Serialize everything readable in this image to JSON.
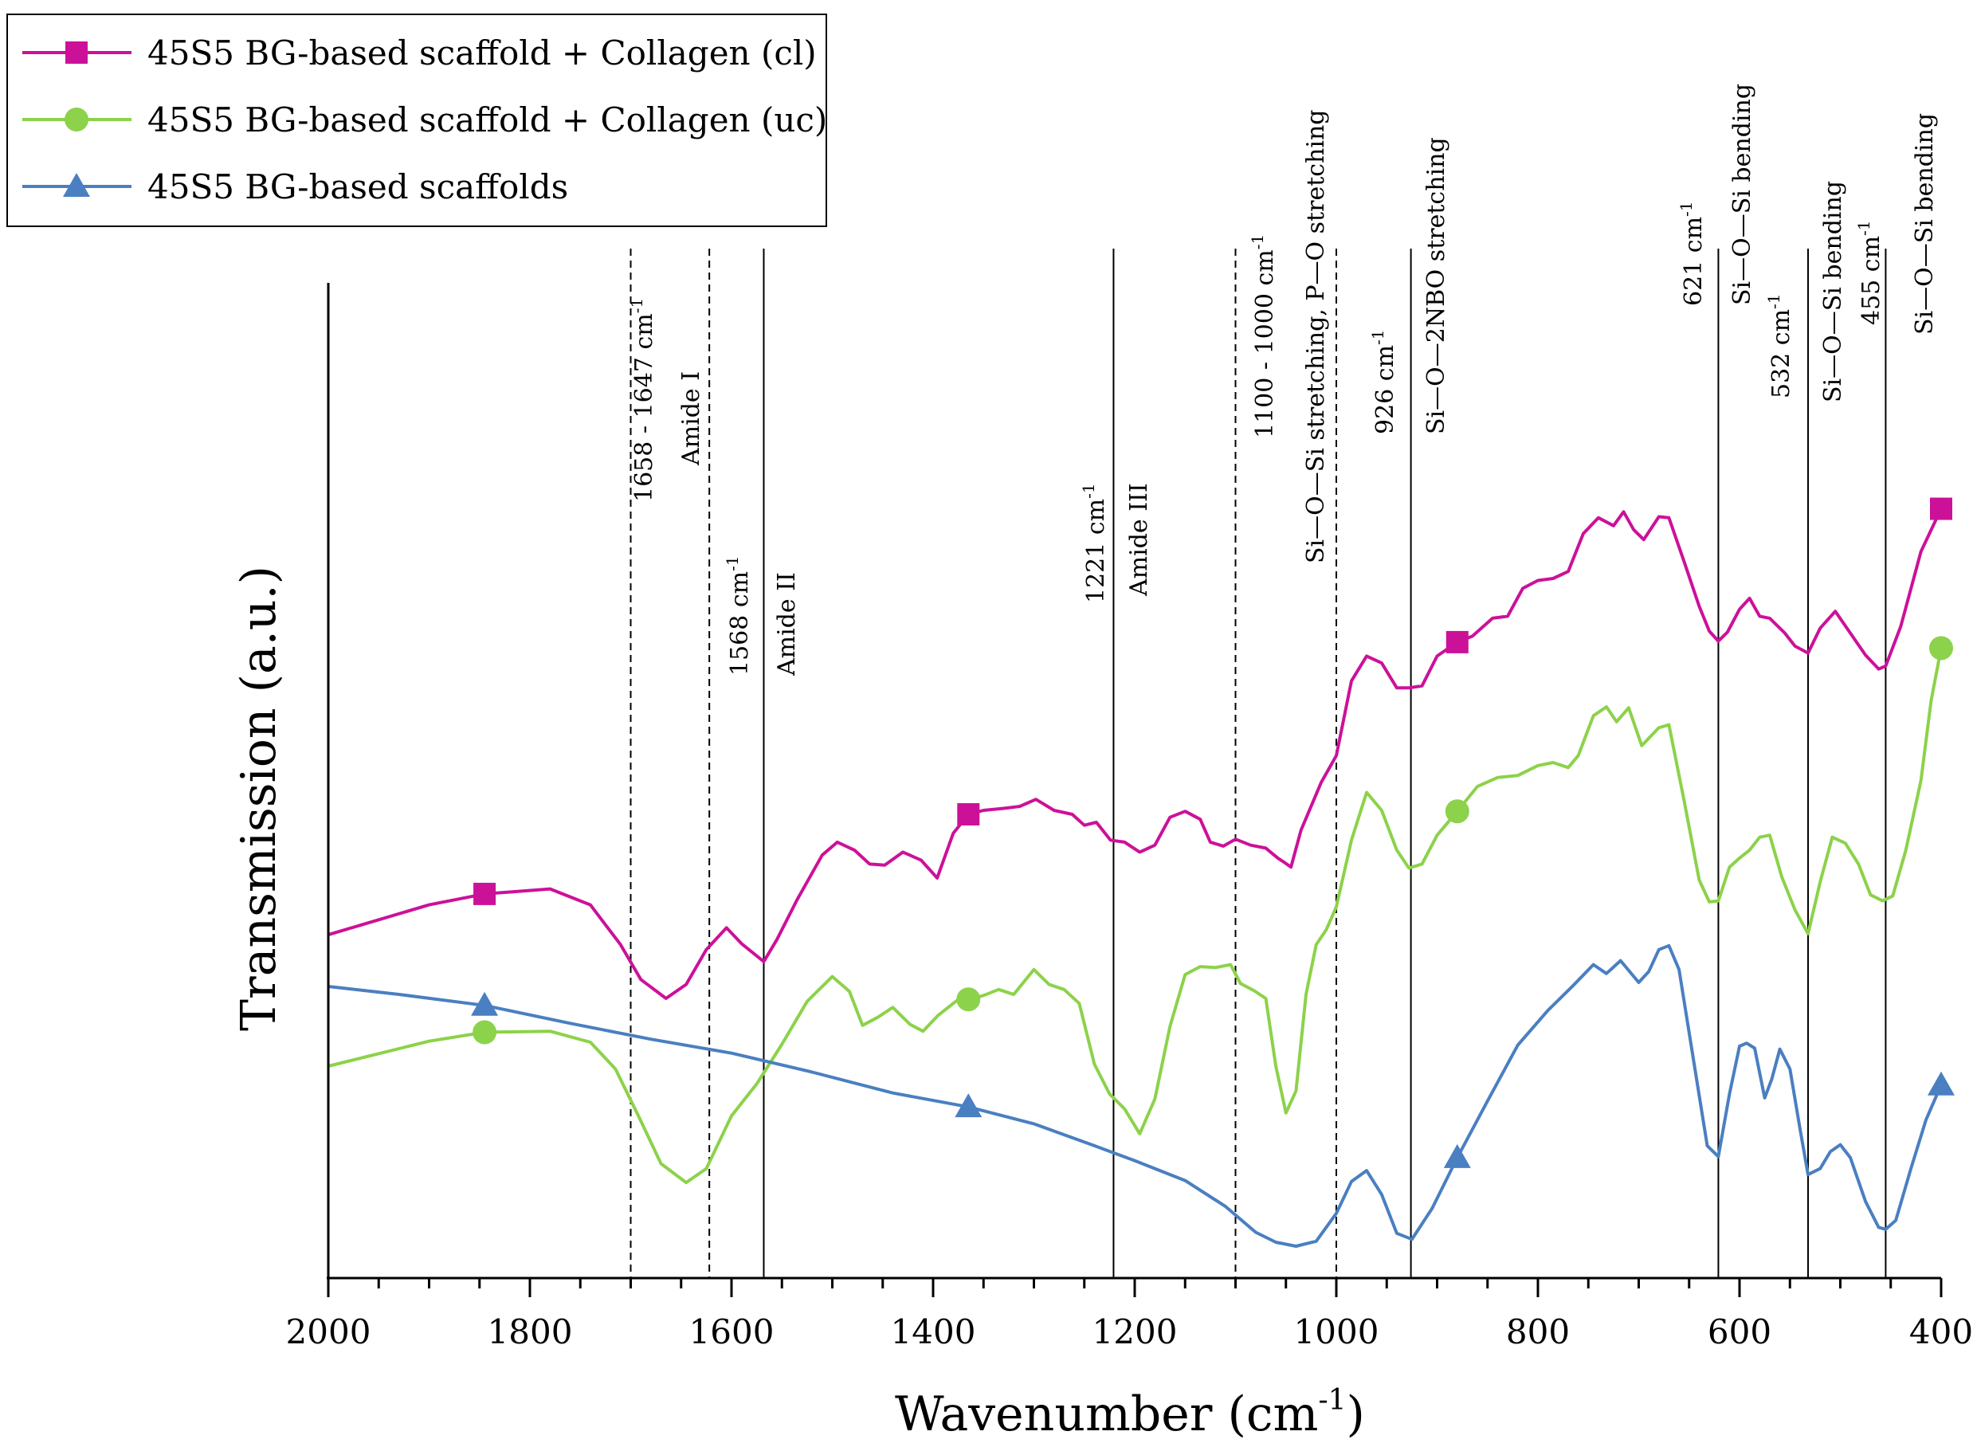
{
  "chart_data": {
    "type": "line",
    "xlabel": "Wavenumber (cm",
    "xlabel_sup": "-1",
    "xlabel_end": ")",
    "ylabel": "Transmission (a.u.)",
    "xlim": [
      2000,
      400
    ],
    "ylim": [
      0,
      100
    ],
    "x_reversed": true,
    "x_ticks": [
      2000,
      1800,
      1600,
      1400,
      1200,
      1000,
      800,
      600,
      400
    ],
    "x_tick_labels": [
      "2000",
      "1800",
      "1600",
      "1400",
      "1200",
      "1000",
      "800",
      "600",
      "400"
    ],
    "legend_position": "top-left",
    "series": [
      {
        "name": "45S5 BG-based scaffold + Collagen (cl)",
        "color": "#cc1199",
        "marker": "square",
        "marker_x": [
          1845,
          1365,
          880,
          400
        ],
        "points": [
          [
            2000,
            34.5
          ],
          [
            1900,
            37.5
          ],
          [
            1845,
            38.6
          ],
          [
            1780,
            39.1
          ],
          [
            1740,
            37.5
          ],
          [
            1710,
            33.5
          ],
          [
            1690,
            30
          ],
          [
            1665,
            28.1
          ],
          [
            1645,
            29.5
          ],
          [
            1625,
            33
          ],
          [
            1605,
            35.2
          ],
          [
            1590,
            33.6
          ],
          [
            1568,
            31.8
          ],
          [
            1555,
            34
          ],
          [
            1535,
            38
          ],
          [
            1510,
            42.5
          ],
          [
            1495,
            43.8
          ],
          [
            1478,
            43
          ],
          [
            1463,
            41.6
          ],
          [
            1448,
            41.5
          ],
          [
            1430,
            42.8
          ],
          [
            1412,
            42
          ],
          [
            1396,
            40.2
          ],
          [
            1380,
            44.7
          ],
          [
            1365,
            46.6
          ],
          [
            1350,
            47
          ],
          [
            1330,
            47.2
          ],
          [
            1314,
            47.4
          ],
          [
            1298,
            48.1
          ],
          [
            1280,
            47
          ],
          [
            1262,
            46.6
          ],
          [
            1250,
            45.5
          ],
          [
            1238,
            45.8
          ],
          [
            1224,
            44
          ],
          [
            1210,
            43.8
          ],
          [
            1195,
            42.8
          ],
          [
            1180,
            43.5
          ],
          [
            1165,
            46.3
          ],
          [
            1150,
            46.9
          ],
          [
            1135,
            46.1
          ],
          [
            1125,
            43.8
          ],
          [
            1112,
            43.4
          ],
          [
            1100,
            44.1
          ],
          [
            1085,
            43.5
          ],
          [
            1070,
            43.2
          ],
          [
            1058,
            42.2
          ],
          [
            1052,
            41.8
          ],
          [
            1045,
            41.3
          ],
          [
            1035,
            45
          ],
          [
            1015,
            49.8
          ],
          [
            1000,
            52.5
          ],
          [
            985,
            60
          ],
          [
            970,
            62.5
          ],
          [
            955,
            61.8
          ],
          [
            940,
            59.3
          ],
          [
            928,
            59.3
          ],
          [
            915,
            59.5
          ],
          [
            900,
            62.5
          ],
          [
            880,
            63.9
          ],
          [
            865,
            64.5
          ],
          [
            845,
            66.3
          ],
          [
            830,
            66.5
          ],
          [
            815,
            69.3
          ],
          [
            800,
            70.1
          ],
          [
            785,
            70.3
          ],
          [
            770,
            71
          ],
          [
            755,
            74.8
          ],
          [
            740,
            76.4
          ],
          [
            725,
            75.6
          ],
          [
            715,
            77
          ],
          [
            705,
            75.2
          ],
          [
            695,
            74.2
          ],
          [
            680,
            76.5
          ],
          [
            670,
            76.4
          ],
          [
            655,
            72
          ],
          [
            640,
            67.5
          ],
          [
            630,
            65
          ],
          [
            621,
            64
          ],
          [
            612,
            64.9
          ],
          [
            600,
            67.2
          ],
          [
            590,
            68.3
          ],
          [
            580,
            66.5
          ],
          [
            570,
            66.3
          ],
          [
            555,
            64.8
          ],
          [
            545,
            63.5
          ],
          [
            532,
            62.8
          ],
          [
            520,
            65.3
          ],
          [
            505,
            67
          ],
          [
            490,
            64.8
          ],
          [
            475,
            62.6
          ],
          [
            462,
            61.2
          ],
          [
            455,
            61.5
          ],
          [
            440,
            65.5
          ],
          [
            420,
            73
          ],
          [
            400,
            77.3
          ]
        ]
      },
      {
        "name": "45S5 BG-based scaffold + Collagen (uc)",
        "color": "#8cd24a",
        "marker": "circle",
        "marker_x": [
          1845,
          1365,
          880,
          400
        ],
        "points": [
          [
            2000,
            21.3
          ],
          [
            1900,
            23.8
          ],
          [
            1845,
            24.7
          ],
          [
            1780,
            24.8
          ],
          [
            1740,
            23.7
          ],
          [
            1715,
            21
          ],
          [
            1690,
            15.8
          ],
          [
            1670,
            11.5
          ],
          [
            1645,
            9.6
          ],
          [
            1625,
            11
          ],
          [
            1600,
            16.3
          ],
          [
            1575,
            19.5
          ],
          [
            1550,
            23.5
          ],
          [
            1525,
            27.8
          ],
          [
            1500,
            30.3
          ],
          [
            1483,
            28.8
          ],
          [
            1470,
            25.4
          ],
          [
            1455,
            26.2
          ],
          [
            1440,
            27.2
          ],
          [
            1423,
            25.5
          ],
          [
            1410,
            24.8
          ],
          [
            1395,
            26.4
          ],
          [
            1375,
            28
          ],
          [
            1365,
            28
          ],
          [
            1350,
            28.4
          ],
          [
            1335,
            29
          ],
          [
            1320,
            28.5
          ],
          [
            1300,
            31
          ],
          [
            1285,
            29.5
          ],
          [
            1270,
            29
          ],
          [
            1255,
            27.6
          ],
          [
            1240,
            21.5
          ],
          [
            1225,
            18.5
          ],
          [
            1210,
            17
          ],
          [
            1195,
            14.5
          ],
          [
            1180,
            18
          ],
          [
            1165,
            25.3
          ],
          [
            1150,
            30.5
          ],
          [
            1135,
            31.3
          ],
          [
            1120,
            31.2
          ],
          [
            1105,
            31.5
          ],
          [
            1095,
            29.6
          ],
          [
            1082,
            28.9
          ],
          [
            1070,
            28.1
          ],
          [
            1060,
            21.3
          ],
          [
            1050,
            16.6
          ],
          [
            1040,
            18.8
          ],
          [
            1030,
            28.5
          ],
          [
            1020,
            33.5
          ],
          [
            1010,
            35
          ],
          [
            1000,
            37.3
          ],
          [
            985,
            44
          ],
          [
            970,
            48.8
          ],
          [
            955,
            47
          ],
          [
            940,
            43
          ],
          [
            928,
            41.2
          ],
          [
            915,
            41.6
          ],
          [
            900,
            44.5
          ],
          [
            880,
            46.9
          ],
          [
            860,
            49.4
          ],
          [
            840,
            50.3
          ],
          [
            820,
            50.5
          ],
          [
            800,
            51.5
          ],
          [
            785,
            51.8
          ],
          [
            770,
            51.3
          ],
          [
            760,
            52.5
          ],
          [
            745,
            56.5
          ],
          [
            732,
            57.4
          ],
          [
            722,
            55.9
          ],
          [
            710,
            57.3
          ],
          [
            697,
            53.5
          ],
          [
            680,
            55.3
          ],
          [
            670,
            55.6
          ],
          [
            655,
            48
          ],
          [
            640,
            40
          ],
          [
            630,
            37.8
          ],
          [
            621,
            37.9
          ],
          [
            610,
            41.3
          ],
          [
            600,
            42.2
          ],
          [
            590,
            43
          ],
          [
            580,
            44.3
          ],
          [
            570,
            44.5
          ],
          [
            558,
            40.3
          ],
          [
            545,
            37
          ],
          [
            532,
            34.6
          ],
          [
            520,
            39.8
          ],
          [
            508,
            44.3
          ],
          [
            495,
            43.7
          ],
          [
            482,
            41.6
          ],
          [
            470,
            38.5
          ],
          [
            458,
            37.9
          ],
          [
            448,
            38.4
          ],
          [
            435,
            43
          ],
          [
            420,
            50
          ],
          [
            410,
            58
          ],
          [
            400,
            63.3
          ]
        ]
      },
      {
        "name": "45S5 BG-based scaffolds",
        "color": "#4a7fc1",
        "marker": "triangle",
        "marker_x": [
          1845,
          1365,
          880,
          400
        ],
        "points": [
          [
            2000,
            29.3
          ],
          [
            1930,
            28.5
          ],
          [
            1845,
            27.4
          ],
          [
            1760,
            25.6
          ],
          [
            1680,
            24
          ],
          [
            1600,
            22.6
          ],
          [
            1520,
            20.7
          ],
          [
            1440,
            18.6
          ],
          [
            1365,
            17.2
          ],
          [
            1300,
            15.5
          ],
          [
            1240,
            13.3
          ],
          [
            1200,
            11.8
          ],
          [
            1150,
            9.8
          ],
          [
            1110,
            7.2
          ],
          [
            1080,
            4.6
          ],
          [
            1060,
            3.6
          ],
          [
            1040,
            3.2
          ],
          [
            1020,
            3.7
          ],
          [
            1000,
            6.5
          ],
          [
            985,
            9.7
          ],
          [
            970,
            10.8
          ],
          [
            955,
            8.4
          ],
          [
            940,
            4.5
          ],
          [
            925,
            3.9
          ],
          [
            905,
            7
          ],
          [
            880,
            12.1
          ],
          [
            850,
            17.8
          ],
          [
            820,
            23.4
          ],
          [
            790,
            26.9
          ],
          [
            765,
            29.4
          ],
          [
            745,
            31.5
          ],
          [
            732,
            30.6
          ],
          [
            718,
            31.9
          ],
          [
            700,
            29.7
          ],
          [
            690,
            30.8
          ],
          [
            680,
            33
          ],
          [
            670,
            33.4
          ],
          [
            660,
            31
          ],
          [
            645,
            21.5
          ],
          [
            632,
            13.3
          ],
          [
            621,
            12.2
          ],
          [
            610,
            18.5
          ],
          [
            600,
            23.3
          ],
          [
            593,
            23.6
          ],
          [
            585,
            23.1
          ],
          [
            575,
            18.1
          ],
          [
            568,
            20
          ],
          [
            560,
            23
          ],
          [
            550,
            21
          ],
          [
            540,
            15
          ],
          [
            532,
            10.4
          ],
          [
            520,
            11
          ],
          [
            510,
            12.7
          ],
          [
            500,
            13.4
          ],
          [
            490,
            12.1
          ],
          [
            475,
            7.7
          ],
          [
            462,
            5.1
          ],
          [
            455,
            4.9
          ],
          [
            445,
            5.8
          ],
          [
            430,
            11
          ],
          [
            415,
            15.9
          ],
          [
            400,
            19.4
          ]
        ]
      }
    ],
    "vertical_lines": [
      {
        "x": 1700,
        "style": "dashed"
      },
      {
        "x": 1622,
        "style": "dashed"
      },
      {
        "x": 1568,
        "style": "solid"
      },
      {
        "x": 1221,
        "style": "solid"
      },
      {
        "x": 1100,
        "style": "dashed"
      },
      {
        "x": 1000,
        "style": "dashed"
      },
      {
        "x": 926,
        "style": "solid"
      },
      {
        "x": 621,
        "style": "solid"
      },
      {
        "x": 532,
        "style": "solid"
      },
      {
        "x": 455,
        "style": "solid"
      }
    ],
    "annotations": {
      "a1658": {
        "main": "1658 - 1647 cm",
        "sup": "-1"
      },
      "amide1": "Amide I",
      "a1568": {
        "main": "1568 cm",
        "sup": "-1"
      },
      "amide2": "Amide II",
      "a1221": {
        "main": "1221 cm",
        "sup": "-1"
      },
      "amide3": "Amide III",
      "a1100": {
        "main": "1100 - 1000 cm",
        "sup": "-1"
      },
      "sio_po": "Si—O—Si stretching, P—O stretching",
      "a926": {
        "main": "926 cm",
        "sup": "-1"
      },
      "nbo": "Si—O—2NBO stretching",
      "a621": {
        "main": "621 cm",
        "sup": "-1"
      },
      "bend1": "Si—O—Si bending",
      "a532": {
        "main": "532 cm",
        "sup": "-1"
      },
      "bend2": "Si—O—Si bending",
      "a455": {
        "main": "455 cm",
        "sup": "-1"
      },
      "bend3": "Si—O—Si bending"
    }
  }
}
